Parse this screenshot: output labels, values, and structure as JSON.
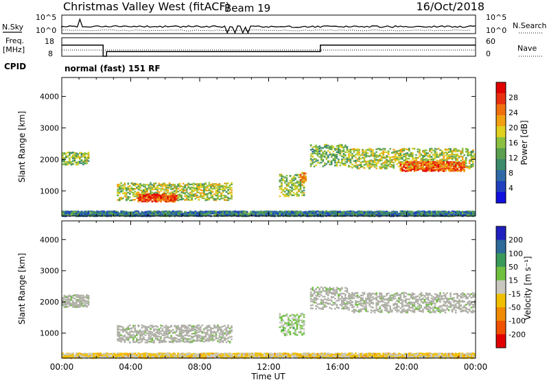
{
  "header": {
    "station": "Christmas Valley West (fitACF)",
    "beam": "Beam 19",
    "date": "16/Oct/2018"
  },
  "summary_panels": {
    "nsky_label": "N.Sky",
    "nsky_ticks": [
      "10^5",
      "10^0"
    ],
    "nsearch_label": "N.Search",
    "nsearch_ticks": [
      "10^5",
      "10^0"
    ],
    "freq_label": "Freq.",
    "freq_unit": "[MHz]",
    "freq_ticks": [
      "18",
      "8"
    ],
    "nave_label": "Nave",
    "nave_ticks": [
      "60",
      "0"
    ],
    "cpid_label": "CPID",
    "cpid_value": "normal (fast) 151 RF"
  },
  "colors": {
    "power": [
      "#1010e0",
      "#2040c0",
      "#2f6aa8",
      "#3b8a6c",
      "#5aa050",
      "#8cc040",
      "#e0d020",
      "#f0a010",
      "#f07010",
      "#e83010",
      "#e00000"
    ],
    "velocity": [
      "#2020c0",
      "#2e6a9a",
      "#3a9a5a",
      "#70c040",
      "#c8c8c0",
      "#f0c000",
      "#f08a00",
      "#f05000",
      "#e00000"
    ],
    "ground": "#b0b0a8"
  },
  "chart_data": [
    {
      "type": "heatmap",
      "name": "power",
      "ylabel": "Slant Range [km]",
      "yticks": [
        1000,
        2000,
        3000,
        4000
      ],
      "ylim": [
        200,
        4600
      ],
      "xticks": [
        "00:00",
        "04:00",
        "08:00",
        "12:00",
        "16:00",
        "20:00",
        "00:00"
      ],
      "xlim_hours": [
        0,
        24
      ],
      "colorbar": {
        "label": "Power [dB]",
        "ticks": [
          "4",
          "8",
          "12",
          "16",
          "20",
          "24",
          "28"
        ],
        "range": [
          0,
          30
        ]
      },
      "echo_regions": [
        {
          "t_start": 0.0,
          "t_end": 1.6,
          "range_center": 2050,
          "range_halfwidth": 200,
          "power": 14
        },
        {
          "t_start": 3.2,
          "t_end": 9.8,
          "range_center": 1000,
          "range_halfwidth": 280,
          "power": 16
        },
        {
          "t_start": 4.4,
          "t_end": 6.6,
          "range_center": 800,
          "range_halfwidth": 120,
          "power": 27
        },
        {
          "t_start": 12.6,
          "t_end": 14.0,
          "range_center": 1200,
          "range_halfwidth": 350,
          "power": 14
        },
        {
          "t_start": 13.8,
          "t_end": 14.2,
          "range_center": 1450,
          "range_halfwidth": 150,
          "power": 22
        },
        {
          "t_start": 14.4,
          "t_end": 16.6,
          "range_center": 2150,
          "range_halfwidth": 350,
          "power": 13
        },
        {
          "t_start": 16.6,
          "t_end": 24.0,
          "range_center": 2050,
          "range_halfwidth": 320,
          "power": 16
        },
        {
          "t_start": 19.6,
          "t_end": 23.4,
          "range_center": 1800,
          "range_halfwidth": 150,
          "power": 25
        },
        {
          "t_start": 0.0,
          "t_end": 24.0,
          "range_center": 300,
          "range_halfwidth": 80,
          "power": 8
        }
      ]
    },
    {
      "type": "heatmap",
      "name": "velocity",
      "ylabel": "Slant Range [km]",
      "yticks": [
        1000,
        2000,
        3000,
        4000
      ],
      "ylim": [
        200,
        4600
      ],
      "xticks": [
        "00:00",
        "04:00",
        "08:00",
        "12:00",
        "16:00",
        "20:00",
        "00:00"
      ],
      "xlabel": "Time UT",
      "xlim_hours": [
        0,
        24
      ],
      "colorbar": {
        "label": "Velocity [m s⁻¹]",
        "ticks": [
          "200",
          "100",
          "50",
          "15",
          "-15",
          "-50",
          "-100",
          "-200"
        ],
        "range": [
          -250,
          250
        ]
      },
      "echo_regions": [
        {
          "t_start": 0.0,
          "t_end": 1.6,
          "range_center": 2050,
          "range_halfwidth": 200,
          "velocity": 0
        },
        {
          "t_start": 3.2,
          "t_end": 9.8,
          "range_center": 1000,
          "range_halfwidth": 280,
          "velocity": 0
        },
        {
          "t_start": 12.6,
          "t_end": 14.0,
          "range_center": 1300,
          "range_halfwidth": 350,
          "velocity": 40
        },
        {
          "t_start": 14.4,
          "t_end": 16.6,
          "range_center": 2150,
          "range_halfwidth": 350,
          "velocity": 0
        },
        {
          "t_start": 16.6,
          "t_end": 24.0,
          "range_center": 2000,
          "range_halfwidth": 320,
          "velocity": 0
        },
        {
          "t_start": 0.0,
          "t_end": 24.0,
          "range_center": 300,
          "range_halfwidth": 80,
          "velocity": -40
        }
      ]
    }
  ]
}
